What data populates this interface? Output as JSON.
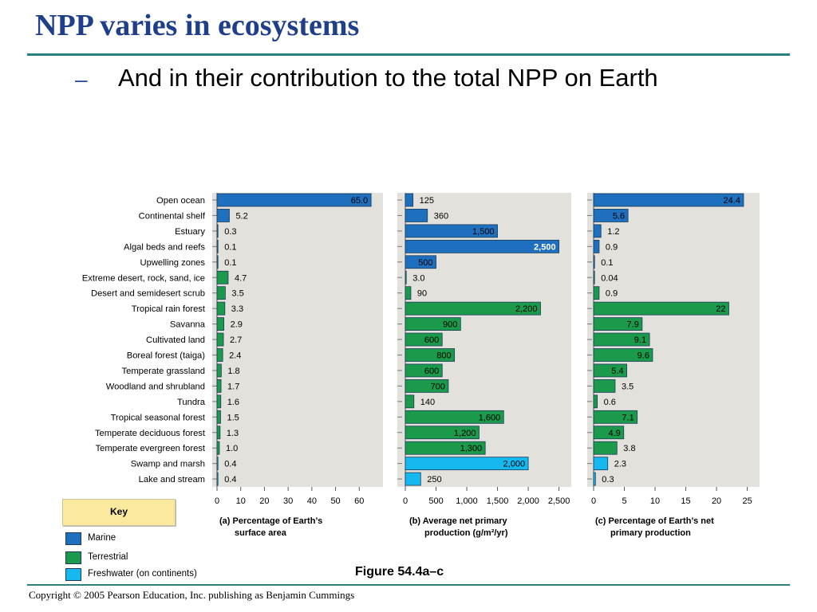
{
  "slide": {
    "title": "NPP varies in ecosystems",
    "bullet_dash": "–",
    "bullet": "And in their contribution to the total NPP on Earth",
    "figure_label": "Figure 54.4a–c",
    "copyright": "Copyright © 2005 Pearson Education, Inc. publishing as Benjamin Cummings"
  },
  "key": {
    "title": "Key",
    "items": [
      {
        "label": "Marine",
        "color": "#1f6fbf"
      },
      {
        "label": "Terrestrial",
        "color": "#1a9a4a"
      },
      {
        "label": "Freshwater (on continents)",
        "color": "#16b8f0"
      }
    ]
  },
  "chart_data": [
    {
      "type": "bar",
      "orientation": "horizontal",
      "caption": [
        "(a) Percentage of Earth’s",
        "surface area"
      ],
      "xlim": [
        0,
        70
      ],
      "ticks": [
        "0",
        "10",
        "20",
        "30",
        "40",
        "50",
        "60"
      ],
      "tick_values": [
        0,
        10,
        20,
        30,
        40,
        50,
        60
      ],
      "categories": [
        "Open ocean",
        "Continental shelf",
        "Estuary",
        "Algal beds and reefs",
        "Upwelling zones",
        "Extreme desert, rock, sand, ice",
        "Desert and semidesert scrub",
        "Tropical rain forest",
        "Savanna",
        "Cultivated land",
        "Boreal forest (taiga)",
        "Temperate grassland",
        "Woodland and shrubland",
        "Tundra",
        "Tropical seasonal forest",
        "Temperate deciduous forest",
        "Temperate evergreen forest",
        "Swamp and marsh",
        "Lake and stream"
      ],
      "values": [
        65.0,
        5.2,
        0.3,
        0.1,
        0.1,
        4.7,
        3.5,
        3.3,
        2.9,
        2.7,
        2.4,
        1.8,
        1.7,
        1.6,
        1.5,
        1.3,
        1.0,
        0.4,
        0.4
      ],
      "labels": [
        "65.0",
        "5.2",
        "0.3",
        "0.1",
        "0.1",
        "4.7",
        "3.5",
        "3.3",
        "2.9",
        "2.7",
        "2.4",
        "1.8",
        "1.7",
        "1.6",
        "1.5",
        "1.3",
        "1.0",
        "0.4",
        "0.4"
      ],
      "groups": [
        "Marine",
        "Marine",
        "Marine",
        "Marine",
        "Marine",
        "Terrestrial",
        "Terrestrial",
        "Terrestrial",
        "Terrestrial",
        "Terrestrial",
        "Terrestrial",
        "Terrestrial",
        "Terrestrial",
        "Terrestrial",
        "Terrestrial",
        "Terrestrial",
        "Terrestrial",
        "Freshwater (on continents)",
        "Freshwater (on continents)"
      ]
    },
    {
      "type": "bar",
      "orientation": "horizontal",
      "caption": [
        "(b) Average net primary",
        "production (g/m²/yr)"
      ],
      "xlim": [
        0,
        2700
      ],
      "ticks": [
        "0",
        "500",
        "1,000",
        "1,500",
        "2,000",
        "2,500"
      ],
      "tick_values": [
        0,
        500,
        1000,
        1500,
        2000,
        2500
      ],
      "categories": [
        "Open ocean",
        "Continental shelf",
        "Estuary",
        "Algal beds and reefs",
        "Upwelling zones",
        "Extreme desert, rock, sand, ice",
        "Desert and semidesert scrub",
        "Tropical rain forest",
        "Savanna",
        "Cultivated land",
        "Boreal forest (taiga)",
        "Temperate grassland",
        "Woodland and shrubland",
        "Tundra",
        "Tropical seasonal forest",
        "Temperate deciduous forest",
        "Temperate evergreen forest",
        "Swamp and marsh",
        "Lake and stream"
      ],
      "values": [
        125,
        360,
        1500,
        2500,
        500,
        3.0,
        90,
        2200,
        900,
        600,
        800,
        600,
        700,
        140,
        1600,
        1200,
        1300,
        2000,
        250
      ],
      "labels": [
        "125",
        "360",
        "1,500",
        "2,500",
        "500",
        "3.0",
        "90",
        "2,200",
        "900",
        "600",
        "800",
        "600",
        "700",
        "140",
        "1,600",
        "1,200",
        "1,300",
        "2,000",
        "250"
      ]
    },
    {
      "type": "bar",
      "orientation": "horizontal",
      "caption": [
        "(c) Percentage of Earth’s net",
        "primary production"
      ],
      "xlim": [
        0,
        27
      ],
      "ticks": [
        "0",
        "5",
        "10",
        "15",
        "20",
        "25"
      ],
      "tick_values": [
        0,
        5,
        10,
        15,
        20,
        25
      ],
      "categories": [
        "Open ocean",
        "Continental shelf",
        "Estuary",
        "Algal beds and reefs",
        "Upwelling zones",
        "Extreme desert, rock, sand, ice",
        "Desert and semidesert scrub",
        "Tropical rain forest",
        "Savanna",
        "Cultivated land",
        "Boreal forest (taiga)",
        "Temperate grassland",
        "Woodland and shrubland",
        "Tundra",
        "Tropical seasonal forest",
        "Temperate deciduous forest",
        "Temperate evergreen forest",
        "Swamp and marsh",
        "Lake and stream"
      ],
      "values": [
        24.4,
        5.6,
        1.2,
        0.9,
        0.1,
        0.04,
        0.9,
        22,
        7.9,
        9.1,
        9.6,
        5.4,
        3.5,
        0.6,
        7.1,
        4.9,
        3.8,
        2.3,
        0.3
      ],
      "labels": [
        "24.4",
        "5.6",
        "1.2",
        "0.9",
        "0.1",
        "0.04",
        "0.9",
        "22",
        "7.9",
        "9.1",
        "9.6",
        "5.4",
        "3.5",
        "0.6",
        "7.1",
        "4.9",
        "3.8",
        "2.3",
        "0.3"
      ]
    }
  ]
}
